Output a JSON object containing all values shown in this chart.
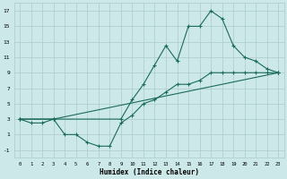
{
  "xlabel": "Humidex (Indice chaleur)",
  "bg_color": "#cce8e8",
  "grid_color": "#aacccc",
  "line_color": "#1a6b5a",
  "xlim": [
    -0.5,
    23.5
  ],
  "ylim": [
    -2,
    18
  ],
  "xticks": [
    0,
    1,
    2,
    3,
    4,
    5,
    6,
    7,
    8,
    9,
    10,
    11,
    12,
    13,
    14,
    15,
    16,
    17,
    18,
    19,
    20,
    21,
    22,
    23
  ],
  "yticks": [
    -1,
    1,
    3,
    5,
    7,
    9,
    11,
    13,
    15,
    17
  ],
  "line1_x": [
    0,
    1,
    2,
    3,
    4,
    5,
    6,
    7,
    8,
    9,
    10,
    11,
    12,
    13,
    14,
    15,
    16,
    17,
    18,
    19,
    20,
    21,
    22,
    23
  ],
  "line1_y": [
    3.0,
    2.5,
    2.5,
    3.0,
    1.0,
    1.0,
    0.0,
    -0.5,
    -0.5,
    2.5,
    3.5,
    5.0,
    5.5,
    6.5,
    7.5,
    7.5,
    8.0,
    9.0,
    9.0,
    9.0,
    9.0,
    9.0,
    9.0,
    9.0
  ],
  "line2_x": [
    0,
    3,
    9,
    10,
    11,
    12,
    13,
    14,
    15,
    16,
    17,
    18,
    19,
    20,
    21,
    22,
    23
  ],
  "line2_y": [
    3.0,
    3.0,
    3.0,
    5.5,
    7.5,
    10.0,
    12.5,
    10.5,
    15.0,
    15.0,
    17.0,
    16.0,
    12.5,
    11.0,
    10.5,
    9.5,
    9.0
  ],
  "line3_x": [
    0,
    3,
    23
  ],
  "line3_y": [
    3.0,
    3.0,
    9.0
  ]
}
